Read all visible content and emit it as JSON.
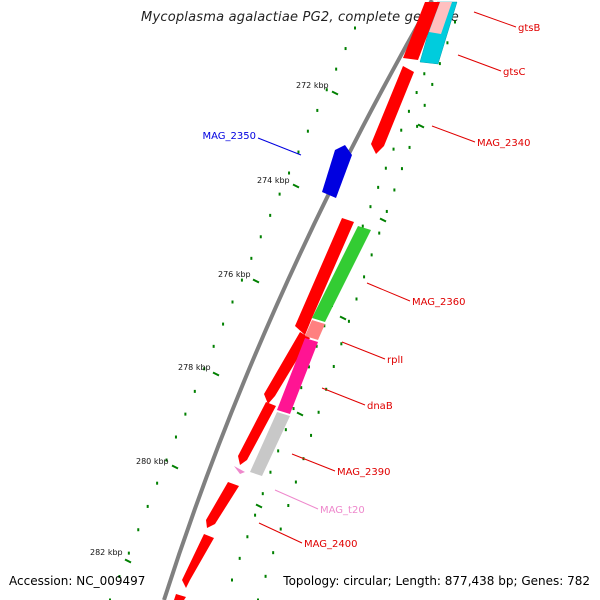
{
  "title": "Mycoplasma agalactiae PG2, complete genome",
  "accession": "Accession: NC_009497",
  "topology": "Topology: circular; Length: 877,438 bp; Genes: 782",
  "colors": {
    "backbone": "#808080",
    "red_gene": "#ff0000",
    "blue_gene": "#0000e0",
    "cyan_gene": "#00ccdd",
    "green_gene": "#33cc33",
    "salmon_gene": "#ff8080",
    "magenta_gene": "#ff1493",
    "grey_gene": "#c8c8c8",
    "pink_gene": "#ee88cc",
    "tick": "#008000"
  },
  "ticks": [
    "272 kbp",
    "274 kbp",
    "276 kbp",
    "278 kbp",
    "280 kbp",
    "282 kbp"
  ],
  "genes": [
    {
      "name": "gtsB",
      "color": "red_gene"
    },
    {
      "name": "gtsC",
      "color": "red_gene"
    },
    {
      "name": "MAG_2340",
      "color": "red_gene"
    },
    {
      "name": "MAG_2350",
      "color": "blue_gene"
    },
    {
      "name": "MAG_2360",
      "color": "red_gene"
    },
    {
      "name": "rplI",
      "color": "red_gene"
    },
    {
      "name": "dnaB",
      "color": "red_gene"
    },
    {
      "name": "MAG_2390",
      "color": "red_gene"
    },
    {
      "name": "MAG_t20",
      "color": "pink_gene"
    },
    {
      "name": "MAG_2400",
      "color": "red_gene"
    }
  ]
}
